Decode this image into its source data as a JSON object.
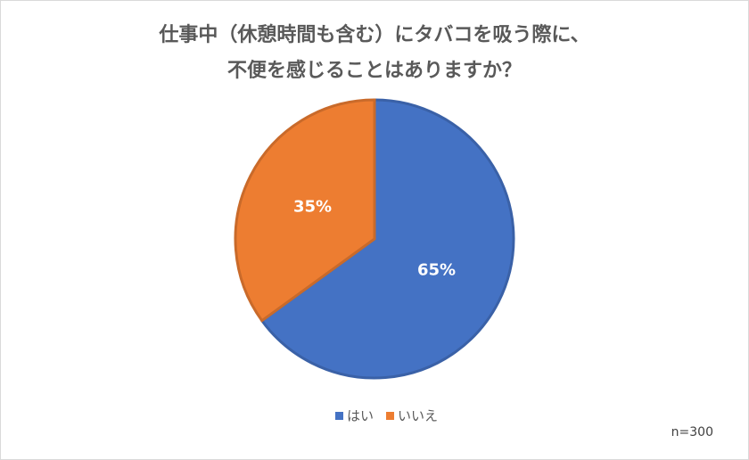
{
  "chart_data": {
    "type": "pie",
    "title": [
      "仕事中（休憩時間も含む）にタバコを吸う際に、",
      "不便を感じることはありますか？"
    ],
    "categories": [
      "はい",
      "いいえ"
    ],
    "values": [
      65,
      35
    ],
    "value_labels": [
      "65%",
      "35%"
    ],
    "colors": [
      "#4472c4",
      "#ed7d31"
    ],
    "note": "n=300"
  }
}
